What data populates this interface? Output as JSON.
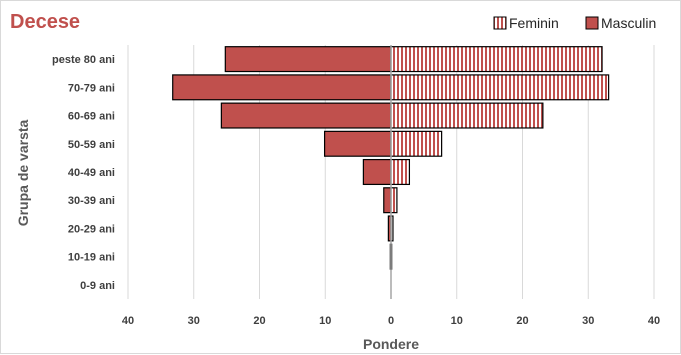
{
  "chart_data": {
    "type": "bar",
    "orientation": "horizontal",
    "style": "population-pyramid",
    "title": "Decese",
    "xlabel": "Pondere",
    "ylabel": "Grupa de varsta",
    "categories": [
      "0-9 ani",
      "10-19 ani",
      "20-29 ani",
      "30-39 ani",
      "40-49 ani",
      "50-59 ani",
      "60-69 ani",
      "70-79 ani",
      "peste 80 ani"
    ],
    "series": [
      {
        "name": "Feminin",
        "side": "right",
        "pattern": "vertical-stripes",
        "color": "#c0504d",
        "values": [
          0,
          0.1,
          0.3,
          0.9,
          2.8,
          7.7,
          23.1,
          33.1,
          32.1
        ]
      },
      {
        "name": "Masculin",
        "side": "left",
        "pattern": "solid",
        "color": "#c0504d",
        "values": [
          0,
          0.1,
          0.4,
          1.1,
          4.2,
          10.1,
          25.8,
          33.2,
          25.2
        ]
      }
    ],
    "xlim": [
      -40,
      40
    ],
    "xticks": [
      -40,
      -30,
      -20,
      -10,
      0,
      10,
      20,
      30,
      40
    ],
    "xtick_labels": [
      "40",
      "30",
      "20",
      "10",
      "0",
      "10",
      "20",
      "30",
      "40"
    ],
    "grid": "vertical",
    "legend": "top-right",
    "colors": {
      "title": "#c0504d",
      "bar_fill": "#c0504d",
      "bar_edge": "#000000",
      "grid": "#d9d9d9",
      "zero_line": "#a6a6a6"
    }
  }
}
